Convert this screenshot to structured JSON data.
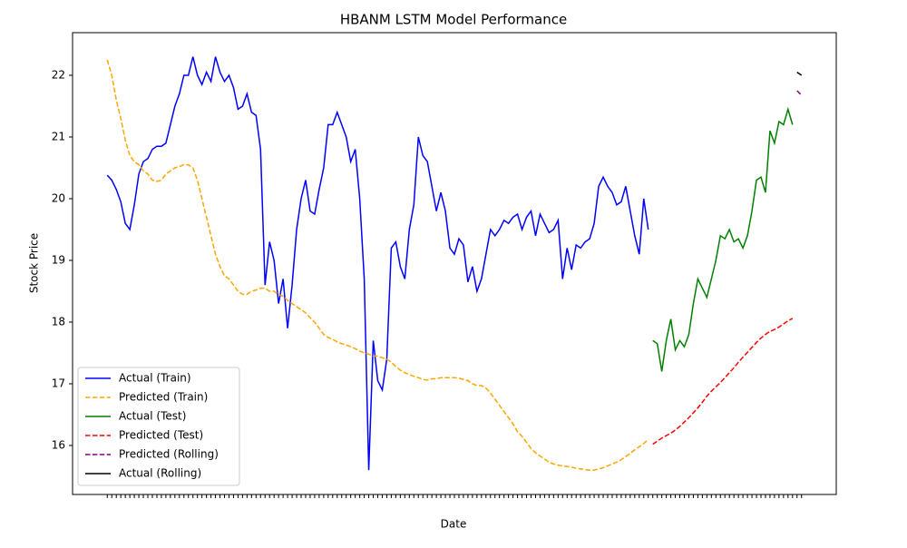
{
  "chart_data": {
    "type": "line",
    "title": "HBANM LSTM Model Performance",
    "x_label": "Date",
    "y_label": "Stock Price",
    "categories": [
      null,
      null,
      null,
      null,
      null,
      null,
      null,
      null,
      null,
      null,
      null,
      null,
      null,
      null,
      null,
      null,
      null,
      null,
      null,
      null,
      null,
      null,
      null,
      null,
      null,
      null,
      null,
      null,
      null,
      null,
      null,
      null,
      null,
      null,
      null,
      null,
      null,
      null,
      null,
      null,
      null,
      null,
      null,
      null,
      null,
      null,
      null,
      null,
      null,
      null,
      null,
      null,
      null,
      null,
      null,
      null,
      null,
      null,
      null,
      null,
      null,
      null,
      null,
      null,
      null,
      null,
      null,
      null,
      null,
      null,
      null,
      null,
      null,
      null,
      null,
      null,
      null,
      null,
      null,
      null,
      null,
      null,
      null,
      null,
      null,
      null,
      null,
      null,
      null,
      null,
      null,
      null,
      null,
      null,
      null,
      null,
      null,
      null,
      null,
      null,
      null,
      null,
      null,
      null,
      null,
      null,
      null,
      null,
      null,
      null,
      null,
      null,
      null,
      null,
      null,
      null,
      null,
      null,
      null,
      null,
      null,
      null,
      null,
      null,
      null,
      null,
      null,
      null,
      null,
      null,
      null,
      null,
      null,
      null,
      null,
      null,
      null,
      null,
      null,
      null,
      null,
      null,
      null,
      null,
      null,
      null,
      null,
      null,
      null,
      null,
      null,
      null,
      null,
      null,
      null
    ],
    "ylim": [
      15.206,
      22.691
    ],
    "yticks": [
      16,
      17,
      18,
      19,
      20,
      21,
      22
    ],
    "legend": "lower left",
    "series": [
      {
        "name": "Actual (Train)",
        "color": "#0000ff",
        "linestyle": "solid",
        "values": [
          20.38,
          20.3,
          20.15,
          19.95,
          19.6,
          19.5,
          19.9,
          20.4,
          20.6,
          20.65,
          20.8,
          20.85,
          20.85,
          20.9,
          21.2,
          21.5,
          21.7,
          22.0,
          22.0,
          22.3,
          22.0,
          21.85,
          22.05,
          21.9,
          22.3,
          22.05,
          21.9,
          22.0,
          21.8,
          21.45,
          21.5,
          21.7,
          21.4,
          21.35,
          20.8,
          18.6,
          19.3,
          19.0,
          18.3,
          18.7,
          17.9,
          18.6,
          19.5,
          20.0,
          20.3,
          19.8,
          19.75,
          20.15,
          20.5,
          21.2,
          21.2,
          21.4,
          21.2,
          21.0,
          20.6,
          20.8,
          20.0,
          18.7,
          15.6,
          17.7,
          17.05,
          16.9,
          17.4,
          19.2,
          19.3,
          18.9,
          18.7,
          19.5,
          19.9,
          21.0,
          20.7,
          20.6,
          20.2,
          19.8,
          20.1,
          19.8,
          19.2,
          19.1,
          19.35,
          19.25,
          18.65,
          18.9,
          18.5,
          18.7,
          19.1,
          19.5,
          19.4,
          19.5,
          19.65,
          19.6,
          19.7,
          19.75,
          19.5,
          19.7,
          19.8,
          19.4,
          19.75,
          19.6,
          19.45,
          19.5,
          19.65,
          18.7,
          19.2,
          18.85,
          19.25,
          19.2,
          19.3,
          19.35,
          19.6,
          20.2,
          20.35,
          20.2,
          20.1,
          19.9,
          19.95,
          20.2,
          19.8,
          19.4,
          19.1,
          20.0,
          19.5,
          null,
          null,
          null,
          null,
          null,
          null,
          null,
          null,
          null,
          null,
          null,
          null,
          null,
          null,
          null,
          null,
          null,
          null,
          null,
          null,
          null,
          null,
          null,
          null,
          null,
          null,
          null,
          null,
          null,
          null,
          null,
          null,
          null,
          null
        ]
      },
      {
        "name": "Predicted (Train)",
        "color": "#ffa500",
        "linestyle": "dashed",
        "values": [
          22.25,
          22.0,
          21.6,
          21.3,
          20.95,
          20.7,
          20.6,
          20.55,
          20.45,
          20.4,
          20.3,
          20.28,
          20.3,
          20.4,
          20.45,
          20.5,
          20.52,
          20.55,
          20.55,
          20.5,
          20.3,
          20.0,
          19.7,
          19.4,
          19.1,
          18.9,
          18.75,
          18.7,
          18.6,
          18.5,
          18.45,
          18.45,
          18.5,
          18.52,
          18.55,
          18.55,
          18.5,
          18.5,
          18.45,
          18.42,
          18.35,
          18.3,
          18.25,
          18.2,
          18.15,
          18.07,
          18.0,
          17.9,
          17.8,
          17.75,
          17.72,
          17.68,
          17.65,
          17.63,
          17.6,
          17.57,
          17.53,
          17.5,
          17.48,
          17.45,
          17.45,
          17.42,
          17.4,
          17.35,
          17.28,
          17.22,
          17.18,
          17.15,
          17.12,
          17.1,
          17.07,
          17.06,
          17.08,
          17.08,
          17.1,
          17.1,
          17.1,
          17.1,
          17.09,
          17.07,
          17.05,
          17.0,
          16.97,
          16.97,
          16.93,
          16.85,
          16.75,
          16.65,
          16.55,
          16.45,
          16.35,
          16.22,
          16.15,
          16.05,
          15.95,
          15.88,
          15.83,
          15.78,
          15.73,
          15.7,
          15.68,
          15.67,
          15.66,
          15.65,
          15.63,
          15.62,
          15.61,
          15.6,
          15.6,
          15.62,
          15.64,
          15.67,
          15.7,
          15.73,
          15.77,
          15.82,
          15.87,
          15.93,
          15.98,
          16.03,
          16.1,
          null,
          null,
          null,
          null,
          null,
          null,
          null,
          null,
          null,
          null,
          null,
          null,
          null,
          null,
          null,
          null,
          null,
          null,
          null,
          null,
          null,
          null,
          null,
          null,
          null,
          null,
          null,
          null,
          null,
          null,
          null,
          null,
          null,
          null
        ]
      },
      {
        "name": "Actual (Test)",
        "color": "#008000",
        "linestyle": "solid",
        "values": [
          null,
          null,
          null,
          null,
          null,
          null,
          null,
          null,
          null,
          null,
          null,
          null,
          null,
          null,
          null,
          null,
          null,
          null,
          null,
          null,
          null,
          null,
          null,
          null,
          null,
          null,
          null,
          null,
          null,
          null,
          null,
          null,
          null,
          null,
          null,
          null,
          null,
          null,
          null,
          null,
          null,
          null,
          null,
          null,
          null,
          null,
          null,
          null,
          null,
          null,
          null,
          null,
          null,
          null,
          null,
          null,
          null,
          null,
          null,
          null,
          null,
          null,
          null,
          null,
          null,
          null,
          null,
          null,
          null,
          null,
          null,
          null,
          null,
          null,
          null,
          null,
          null,
          null,
          null,
          null,
          null,
          null,
          null,
          null,
          null,
          null,
          null,
          null,
          null,
          null,
          null,
          null,
          null,
          null,
          null,
          null,
          null,
          null,
          null,
          null,
          null,
          null,
          null,
          null,
          null,
          null,
          null,
          null,
          null,
          null,
          null,
          null,
          null,
          null,
          null,
          null,
          null,
          null,
          null,
          null,
          null,
          17.7,
          17.65,
          17.2,
          17.7,
          18.05,
          17.55,
          17.7,
          17.6,
          17.8,
          18.3,
          18.7,
          18.55,
          18.4,
          18.7,
          19.0,
          19.4,
          19.35,
          19.5,
          19.3,
          19.35,
          19.2,
          19.4,
          19.8,
          20.3,
          20.35,
          20.1,
          21.1,
          20.9,
          21.25,
          21.2,
          21.45,
          21.2,
          null,
          null
        ]
      },
      {
        "name": "Predicted (Test)",
        "color": "#ff0000",
        "linestyle": "dashed",
        "values": [
          null,
          null,
          null,
          null,
          null,
          null,
          null,
          null,
          null,
          null,
          null,
          null,
          null,
          null,
          null,
          null,
          null,
          null,
          null,
          null,
          null,
          null,
          null,
          null,
          null,
          null,
          null,
          null,
          null,
          null,
          null,
          null,
          null,
          null,
          null,
          null,
          null,
          null,
          null,
          null,
          null,
          null,
          null,
          null,
          null,
          null,
          null,
          null,
          null,
          null,
          null,
          null,
          null,
          null,
          null,
          null,
          null,
          null,
          null,
          null,
          null,
          null,
          null,
          null,
          null,
          null,
          null,
          null,
          null,
          null,
          null,
          null,
          null,
          null,
          null,
          null,
          null,
          null,
          null,
          null,
          null,
          null,
          null,
          null,
          null,
          null,
          null,
          null,
          null,
          null,
          null,
          null,
          null,
          null,
          null,
          null,
          null,
          null,
          null,
          null,
          null,
          null,
          null,
          null,
          null,
          null,
          null,
          null,
          null,
          null,
          null,
          null,
          null,
          null,
          null,
          null,
          null,
          null,
          null,
          null,
          null,
          16.02,
          16.07,
          16.12,
          16.16,
          16.2,
          16.25,
          16.31,
          16.38,
          16.45,
          16.53,
          16.61,
          16.7,
          16.8,
          16.88,
          16.95,
          17.02,
          17.1,
          17.18,
          17.26,
          17.35,
          17.43,
          17.51,
          17.59,
          17.67,
          17.74,
          17.8,
          17.85,
          17.88,
          17.92,
          17.97,
          18.02,
          18.06,
          null,
          null
        ]
      },
      {
        "name": "Predicted (Rolling)",
        "color": "#800080",
        "linestyle": "dashed",
        "values": [
          null,
          null,
          null,
          null,
          null,
          null,
          null,
          null,
          null,
          null,
          null,
          null,
          null,
          null,
          null,
          null,
          null,
          null,
          null,
          null,
          null,
          null,
          null,
          null,
          null,
          null,
          null,
          null,
          null,
          null,
          null,
          null,
          null,
          null,
          null,
          null,
          null,
          null,
          null,
          null,
          null,
          null,
          null,
          null,
          null,
          null,
          null,
          null,
          null,
          null,
          null,
          null,
          null,
          null,
          null,
          null,
          null,
          null,
          null,
          null,
          null,
          null,
          null,
          null,
          null,
          null,
          null,
          null,
          null,
          null,
          null,
          null,
          null,
          null,
          null,
          null,
          null,
          null,
          null,
          null,
          null,
          null,
          null,
          null,
          null,
          null,
          null,
          null,
          null,
          null,
          null,
          null,
          null,
          null,
          null,
          null,
          null,
          null,
          null,
          null,
          null,
          null,
          null,
          null,
          null,
          null,
          null,
          null,
          null,
          null,
          null,
          null,
          null,
          null,
          null,
          null,
          null,
          null,
          null,
          null,
          null,
          null,
          null,
          null,
          null,
          null,
          null,
          null,
          null,
          null,
          null,
          null,
          null,
          null,
          null,
          null,
          null,
          null,
          null,
          null,
          null,
          null,
          null,
          null,
          null,
          null,
          null,
          null,
          null,
          null,
          null,
          null,
          null,
          21.75,
          21.68
        ]
      },
      {
        "name": "Actual (Rolling)",
        "color": "#000000",
        "linestyle": "solid",
        "values": [
          null,
          null,
          null,
          null,
          null,
          null,
          null,
          null,
          null,
          null,
          null,
          null,
          null,
          null,
          null,
          null,
          null,
          null,
          null,
          null,
          null,
          null,
          null,
          null,
          null,
          null,
          null,
          null,
          null,
          null,
          null,
          null,
          null,
          null,
          null,
          null,
          null,
          null,
          null,
          null,
          null,
          null,
          null,
          null,
          null,
          null,
          null,
          null,
          null,
          null,
          null,
          null,
          null,
          null,
          null,
          null,
          null,
          null,
          null,
          null,
          null,
          null,
          null,
          null,
          null,
          null,
          null,
          null,
          null,
          null,
          null,
          null,
          null,
          null,
          null,
          null,
          null,
          null,
          null,
          null,
          null,
          null,
          null,
          null,
          null,
          null,
          null,
          null,
          null,
          null,
          null,
          null,
          null,
          null,
          null,
          null,
          null,
          null,
          null,
          null,
          null,
          null,
          null,
          null,
          null,
          null,
          null,
          null,
          null,
          null,
          null,
          null,
          null,
          null,
          null,
          null,
          null,
          null,
          null,
          null,
          null,
          null,
          null,
          null,
          null,
          null,
          null,
          null,
          null,
          null,
          null,
          null,
          null,
          null,
          null,
          null,
          null,
          null,
          null,
          null,
          null,
          null,
          null,
          null,
          null,
          null,
          null,
          null,
          null,
          null,
          null,
          null,
          null,
          22.05,
          22.0
        ]
      }
    ]
  }
}
